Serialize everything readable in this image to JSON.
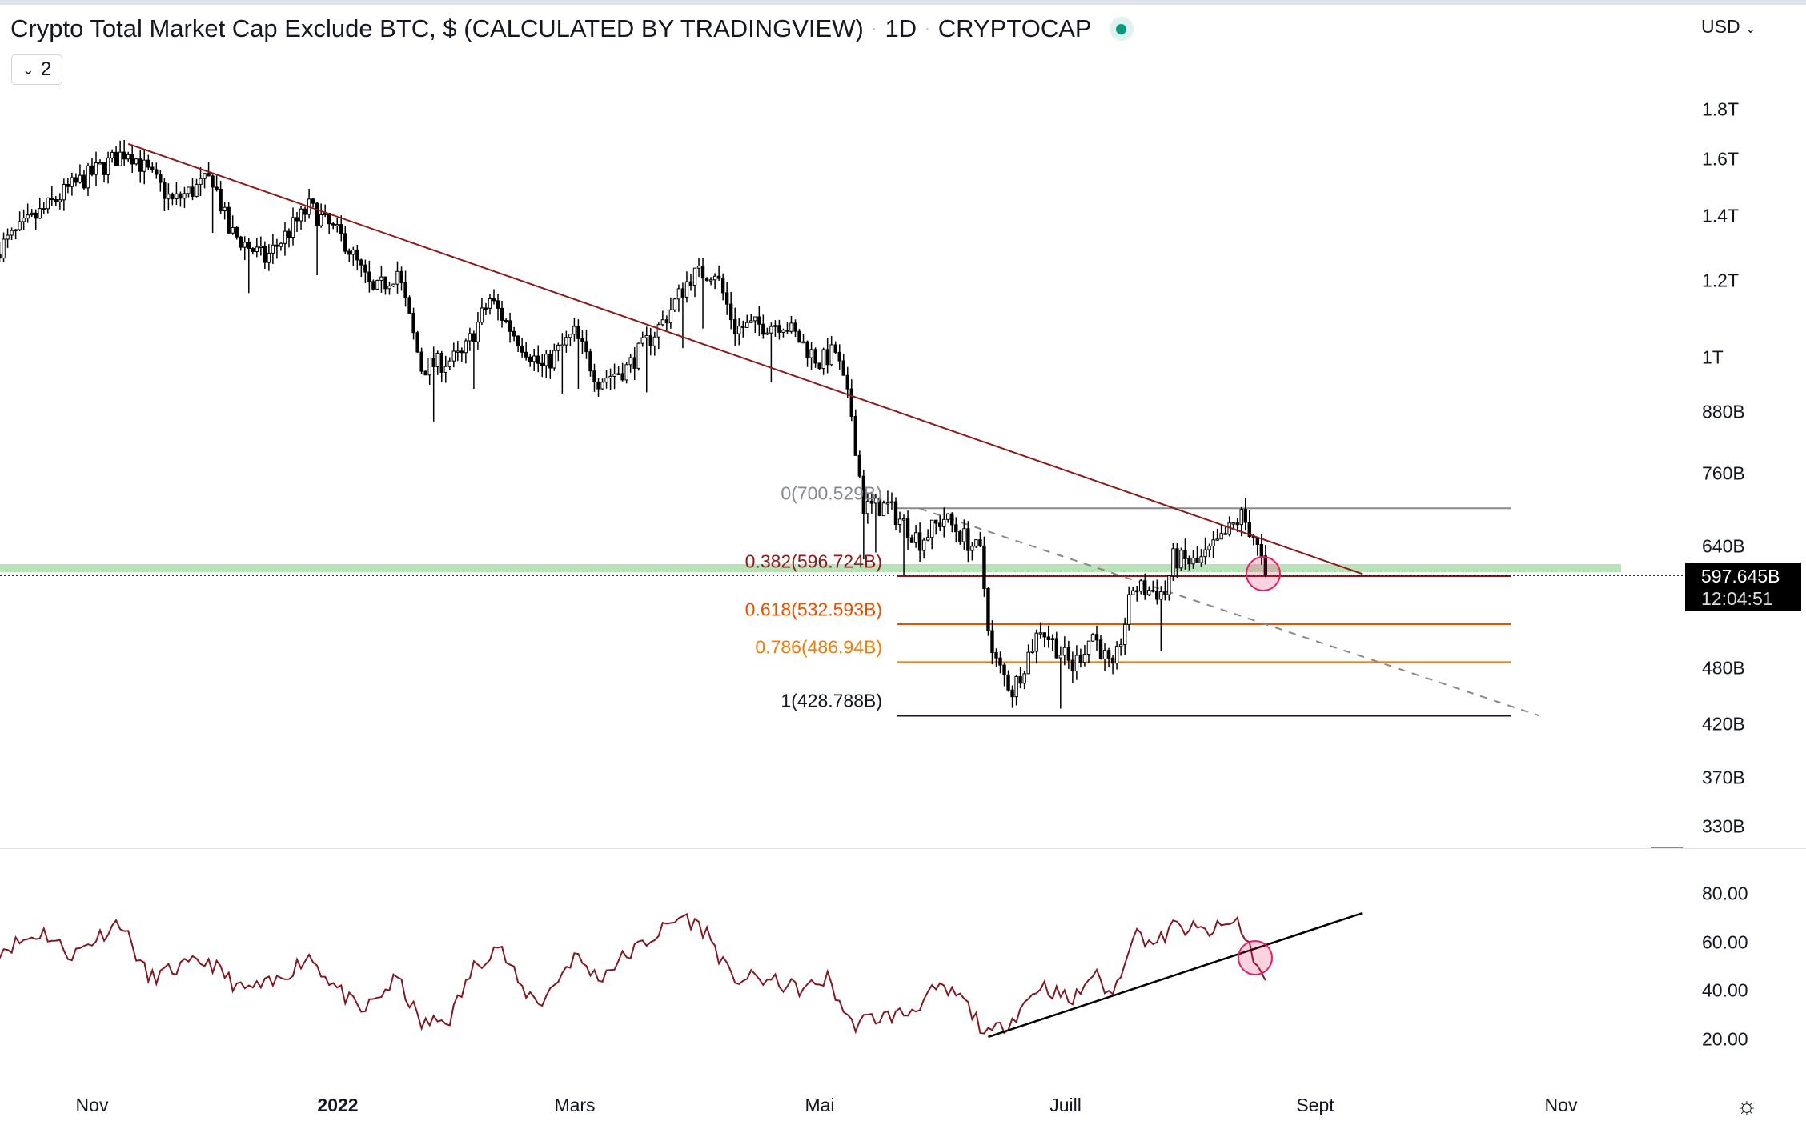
{
  "header": {
    "title": "Crypto Total Market Cap Exclude BTC, $ (CALCULATED BY TRADINGVIEW)",
    "interval": "1D",
    "exchange": "CRYPTOCAP",
    "separator": "·",
    "collapse_label": "2",
    "currency": "USD",
    "status_color": "#089981"
  },
  "price_axis": [
    "1.8T",
    "1.6T",
    "1.4T",
    "1.2T",
    "1T",
    "880B",
    "760B",
    "640B",
    "480B",
    "420B",
    "370B",
    "330B"
  ],
  "current_price": {
    "value": "597.645B",
    "countdown": "12:04:51"
  },
  "rsi_axis": [
    "80.00",
    "60.00",
    "40.00",
    "20.00"
  ],
  "time_axis": [
    {
      "label": "Nov",
      "bold": false
    },
    {
      "label": "2022",
      "bold": true
    },
    {
      "label": "Mars",
      "bold": false
    },
    {
      "label": "Mai",
      "bold": false
    },
    {
      "label": "Juill",
      "bold": false
    },
    {
      "label": "Sept",
      "bold": false
    },
    {
      "label": "Nov",
      "bold": false
    }
  ],
  "fibonacci": [
    {
      "label": "0(700.529B)",
      "level": 0,
      "value": 700.529,
      "color": "#868993"
    },
    {
      "label": "0.382(596.724B)",
      "level": 0.382,
      "value": 596.724,
      "color": "#8b1a1a"
    },
    {
      "label": "0.618(532.593B)",
      "level": 0.618,
      "value": 532.593,
      "color": "#e65100"
    },
    {
      "label": "0.786(486.94B)",
      "level": 0.786,
      "value": 486.94,
      "color": "#f57c00"
    },
    {
      "label": "1(428.788B)",
      "level": 1,
      "value": 428.788,
      "color": "#131722"
    }
  ],
  "colors": {
    "trendline": "#8b1a1a",
    "rsi": "#801922",
    "support_zone": "#b9e2b9",
    "highlight": "#e91e63"
  },
  "chart_data": {
    "type": "candlestick",
    "scale": "log",
    "units": "USD billions",
    "price_path": [
      [
        "2021-10-09",
        1299
      ],
      [
        "2021-10-26",
        1490
      ],
      [
        "2021-11-10",
        1637
      ],
      [
        "2021-11-15",
        1550
      ],
      [
        "2021-11-21",
        1447
      ],
      [
        "2021-12-01",
        1530
      ],
      [
        "2021-12-05",
        1351
      ],
      [
        "2021-12-14",
        1263
      ],
      [
        "2021-12-25",
        1428
      ],
      [
        "2022-01-03",
        1317
      ],
      [
        "2022-01-10",
        1164
      ],
      [
        "2022-01-16",
        1229
      ],
      [
        "2022-01-22",
        976
      ],
      [
        "2022-02-01",
        1003
      ],
      [
        "2022-02-08",
        1149
      ],
      [
        "2022-02-14",
        1059
      ],
      [
        "2022-02-21",
        976
      ],
      [
        "2022-03-01",
        1059
      ],
      [
        "2022-03-07",
        949
      ],
      [
        "2022-03-14",
        976
      ],
      [
        "2022-03-23",
        1088
      ],
      [
        "2022-03-30",
        1214
      ],
      [
        "2022-04-05",
        1229
      ],
      [
        "2022-04-10",
        1073
      ],
      [
        "2022-04-22",
        1088
      ],
      [
        "2022-05-01",
        990
      ],
      [
        "2022-05-05",
        1016
      ],
      [
        "2022-05-09",
        875
      ],
      [
        "2022-05-12",
        703
      ],
      [
        "2022-05-18",
        703
      ],
      [
        "2022-05-26",
        649
      ],
      [
        "2022-06-01",
        685
      ],
      [
        "2022-06-10",
        630
      ],
      [
        "2022-06-13",
        494
      ],
      [
        "2022-06-18",
        455
      ],
      [
        "2022-06-25",
        529
      ],
      [
        "2022-07-03",
        481
      ],
      [
        "2022-07-08",
        521
      ],
      [
        "2022-07-13",
        474
      ],
      [
        "2022-07-18",
        581
      ],
      [
        "2022-07-26",
        573
      ],
      [
        "2022-07-28",
        622
      ],
      [
        "2022-08-03",
        614
      ],
      [
        "2022-08-09",
        649
      ],
      [
        "2022-08-14",
        688
      ],
      [
        "2022-08-17",
        657
      ],
      [
        "2022-08-20",
        597.645
      ]
    ],
    "trendline": [
      [
        "2021-11-10",
        1660
      ],
      [
        "2022-09-13",
        600
      ]
    ],
    "dashed_line": [
      [
        "2022-05-26",
        700
      ],
      [
        "2022-10-27",
        429
      ]
    ],
    "rsi": {
      "name": "RSI",
      "path": [
        [
          "2021-10-09",
          56.9
        ],
        [
          "2021-10-20",
          64.2
        ],
        [
          "2021-10-27",
          54.6
        ],
        [
          "2021-11-08",
          68.8
        ],
        [
          "2021-11-15",
          45.1
        ],
        [
          "2021-11-23",
          49.7
        ],
        [
          "2021-11-30",
          52.3
        ],
        [
          "2021-12-08",
          40.4
        ],
        [
          "2021-12-16",
          42.7
        ],
        [
          "2021-12-25",
          54.6
        ],
        [
          "2021-12-31",
          42.7
        ],
        [
          "2022-01-07",
          30.9
        ],
        [
          "2022-01-16",
          45.1
        ],
        [
          "2022-01-22",
          26
        ],
        [
          "2022-01-29",
          28.6
        ],
        [
          "2022-02-04",
          49.7
        ],
        [
          "2022-02-10",
          59.2
        ],
        [
          "2022-02-16",
          40.4
        ],
        [
          "2022-02-21",
          35.5
        ],
        [
          "2022-03-01",
          54.6
        ],
        [
          "2022-03-07",
          45.1
        ],
        [
          "2022-03-12",
          52.3
        ],
        [
          "2022-03-18",
          59.2
        ],
        [
          "2022-03-28",
          71.1
        ],
        [
          "2022-04-03",
          64.2
        ],
        [
          "2022-04-09",
          45.1
        ],
        [
          "2022-04-16",
          45.1
        ],
        [
          "2022-04-27",
          40.4
        ],
        [
          "2022-05-03",
          45.1
        ],
        [
          "2022-05-09",
          26
        ],
        [
          "2022-05-14",
          28.6
        ],
        [
          "2022-05-23",
          30.9
        ],
        [
          "2022-05-30",
          40.4
        ],
        [
          "2022-06-05",
          37.8
        ],
        [
          "2022-06-12",
          21.3
        ],
        [
          "2022-06-18",
          28.6
        ],
        [
          "2022-06-25",
          42.7
        ],
        [
          "2022-07-03",
          35.5
        ],
        [
          "2022-07-08",
          47.4
        ],
        [
          "2022-07-13",
          37.8
        ],
        [
          "2022-07-18",
          64.2
        ],
        [
          "2022-07-24",
          59.2
        ],
        [
          "2022-07-28",
          66.5
        ],
        [
          "2022-08-06",
          64.2
        ],
        [
          "2022-08-13",
          68.8
        ],
        [
          "2022-08-17",
          54.6
        ],
        [
          "2022-08-20",
          42.7
        ]
      ],
      "trendline": [
        [
          "2022-06-12",
          21
        ],
        [
          "2022-09-13",
          72
        ]
      ],
      "ylim": [
        20,
        80
      ]
    }
  }
}
